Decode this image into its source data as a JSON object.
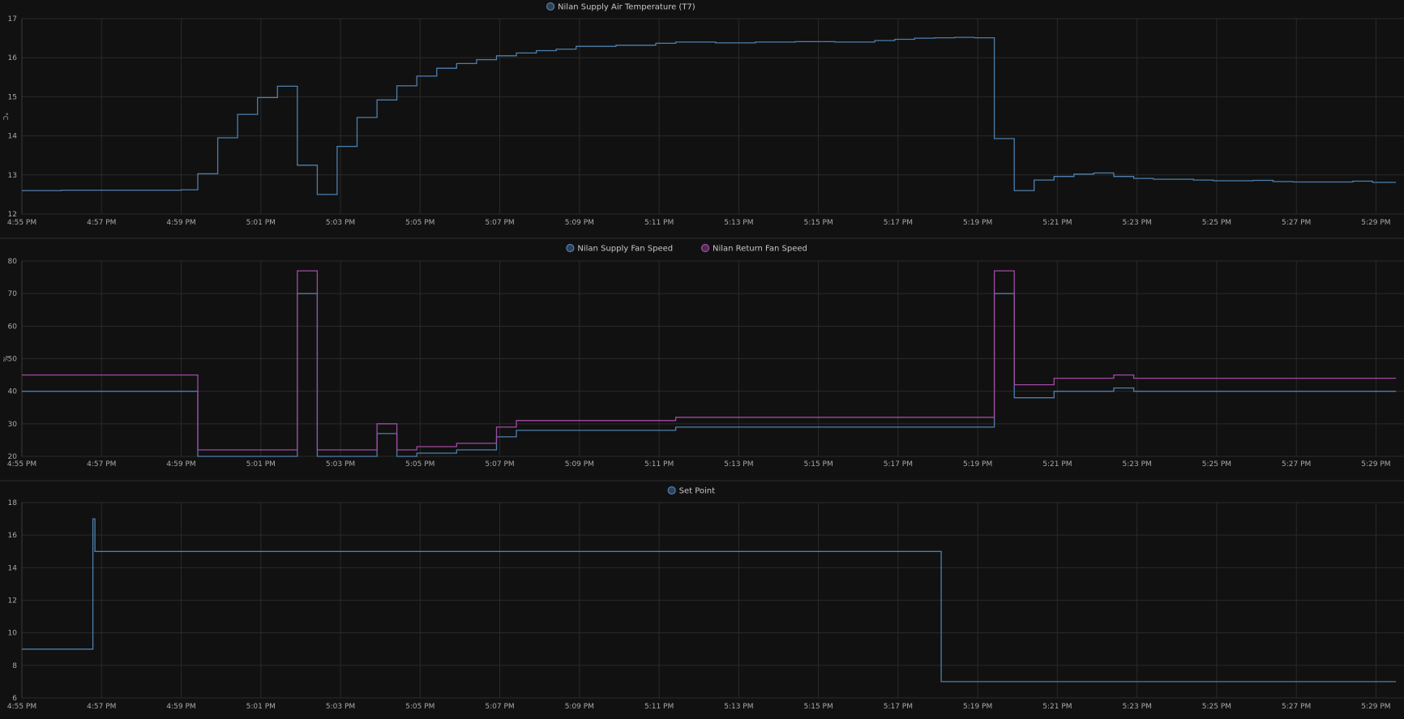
{
  "colors": {
    "background": "#111111",
    "grid": "#2a2a2a",
    "axis_text": "#a9a9a9",
    "legend_text": "#c8c8c8",
    "separator": "#2e2e2e",
    "supply_blue": "#4e7fad",
    "return_purple": "#a24aa3"
  },
  "x_ticks": [
    "4:55 PM",
    "4:57 PM",
    "4:59 PM",
    "5:01 PM",
    "5:03 PM",
    "5:05 PM",
    "5:07 PM",
    "5:09 PM",
    "5:11 PM",
    "5:13 PM",
    "5:15 PM",
    "5:17 PM",
    "5:19 PM",
    "5:21 PM",
    "5:23 PM",
    "5:25 PM",
    "5:27 PM",
    "5:29 PM"
  ],
  "chart_data": [
    {
      "type": "line",
      "step": true,
      "x_unit": "minutes",
      "x_range": [
        "4:55 PM",
        "5:29:30 PM"
      ],
      "ylabel": "°C",
      "ylim": [
        12,
        17
      ],
      "y_ticks": [
        "12",
        "13",
        "14",
        "15",
        "16",
        "17"
      ],
      "grid": true,
      "legend_position": "top-center",
      "series": [
        {
          "name": "Nilan Supply Air Temperature (T7)",
          "color": "#4e7fad",
          "points": [
            [
              "4:55 PM",
              12.6
            ],
            [
              "4:56 PM",
              12.61
            ],
            [
              "4:58:30 PM",
              12.61
            ],
            [
              "4:59 PM",
              12.62
            ],
            [
              "4:59:25 PM",
              13.03
            ],
            [
              "4:59:55 PM",
              13.95
            ],
            [
              "5:00:25 PM",
              14.55
            ],
            [
              "5:00:55 PM",
              14.98
            ],
            [
              "5:01:25 PM",
              15.27
            ],
            [
              "5:01:55 PM",
              13.25
            ],
            [
              "5:02:25 PM",
              12.5
            ],
            [
              "5:02:55 PM",
              13.73
            ],
            [
              "5:03:25 PM",
              14.47
            ],
            [
              "5:03:55 PM",
              14.92
            ],
            [
              "5:04:25 PM",
              15.28
            ],
            [
              "5:04:55 PM",
              15.53
            ],
            [
              "5:05:25 PM",
              15.73
            ],
            [
              "5:05:55 PM",
              15.85
            ],
            [
              "5:06:25 PM",
              15.95
            ],
            [
              "5:06:55 PM",
              16.05
            ],
            [
              "5:07:25 PM",
              16.12
            ],
            [
              "5:07:55 PM",
              16.18
            ],
            [
              "5:08:25 PM",
              16.22
            ],
            [
              "5:08:55 PM",
              16.29
            ],
            [
              "5:09:55 PM",
              16.32
            ],
            [
              "5:10:55 PM",
              16.37
            ],
            [
              "5:11:25 PM",
              16.4
            ],
            [
              "5:12:25 PM",
              16.38
            ],
            [
              "5:13:25 PM",
              16.4
            ],
            [
              "5:14:25 PM",
              16.41
            ],
            [
              "5:15:25 PM",
              16.4
            ],
            [
              "5:16:25 PM",
              16.44
            ],
            [
              "5:16:55 PM",
              16.47
            ],
            [
              "5:17:25 PM",
              16.5
            ],
            [
              "5:17:55 PM",
              16.51
            ],
            [
              "5:18:25 PM",
              16.52
            ],
            [
              "5:18:55 PM",
              16.51
            ],
            [
              "5:19:25 PM",
              13.93
            ],
            [
              "5:19:55 PM",
              12.6
            ],
            [
              "5:20:25 PM",
              12.87
            ],
            [
              "5:20:55 PM",
              12.96
            ],
            [
              "5:21:25 PM",
              13.02
            ],
            [
              "5:21:55 PM",
              13.05
            ],
            [
              "5:22:25 PM",
              12.96
            ],
            [
              "5:22:55 PM",
              12.91
            ],
            [
              "5:23:25 PM",
              12.89
            ],
            [
              "5:24:25 PM",
              12.87
            ],
            [
              "5:24:55 PM",
              12.85
            ],
            [
              "5:25:55 PM",
              12.86
            ],
            [
              "5:26:25 PM",
              12.83
            ],
            [
              "5:26:55 PM",
              12.82
            ],
            [
              "5:28:25 PM",
              12.84
            ],
            [
              "5:28:55 PM",
              12.81
            ],
            [
              "5:29:30 PM",
              12.81
            ]
          ]
        }
      ]
    },
    {
      "type": "line",
      "step": true,
      "x_unit": "minutes",
      "x_range": [
        "4:55 PM",
        "5:29:30 PM"
      ],
      "ylabel": "%",
      "ylim": [
        20,
        80
      ],
      "y_ticks": [
        "20",
        "30",
        "40",
        "50",
        "60",
        "70",
        "80"
      ],
      "grid": true,
      "legend_position": "top-center",
      "series": [
        {
          "name": "Nilan Supply Fan Speed",
          "color": "#4e7fad",
          "points": [
            [
              "4:55 PM",
              40
            ],
            [
              "4:59:25 PM",
              20
            ],
            [
              "5:01:55 PM",
              70
            ],
            [
              "5:02:25 PM",
              20
            ],
            [
              "5:03:55 PM",
              27
            ],
            [
              "5:04:25 PM",
              20
            ],
            [
              "5:04:55 PM",
              21
            ],
            [
              "5:05:55 PM",
              22
            ],
            [
              "5:06:55 PM",
              26
            ],
            [
              "5:07:25 PM",
              28
            ],
            [
              "5:11:25 PM",
              29
            ],
            [
              "5:19:25 PM",
              70
            ],
            [
              "5:19:55 PM",
              38
            ],
            [
              "5:20:55 PM",
              40
            ],
            [
              "5:22:25 PM",
              41
            ],
            [
              "5:22:55 PM",
              40
            ],
            [
              "5:29:30 PM",
              40
            ]
          ]
        },
        {
          "name": "Nilan Return Fan Speed",
          "color": "#a24aa3",
          "points": [
            [
              "4:55 PM",
              45
            ],
            [
              "4:59:25 PM",
              22
            ],
            [
              "5:01:55 PM",
              77
            ],
            [
              "5:02:25 PM",
              22
            ],
            [
              "5:03:55 PM",
              30
            ],
            [
              "5:04:25 PM",
              22
            ],
            [
              "5:04:55 PM",
              23
            ],
            [
              "5:05:55 PM",
              24
            ],
            [
              "5:06:55 PM",
              29
            ],
            [
              "5:07:25 PM",
              31
            ],
            [
              "5:11:25 PM",
              32
            ],
            [
              "5:19:25 PM",
              77
            ],
            [
              "5:19:55 PM",
              42
            ],
            [
              "5:20:55 PM",
              44
            ],
            [
              "5:22:25 PM",
              45
            ],
            [
              "5:22:55 PM",
              44
            ],
            [
              "5:29:30 PM",
              44
            ]
          ]
        }
      ]
    },
    {
      "type": "line",
      "step": true,
      "x_unit": "minutes",
      "x_range": [
        "4:55 PM",
        "5:29:30 PM"
      ],
      "ylabel": "",
      "ylim": [
        6,
        18
      ],
      "y_ticks": [
        "6",
        "8",
        "10",
        "12",
        "14",
        "16",
        "18"
      ],
      "grid": true,
      "legend_position": "top-center",
      "series": [
        {
          "name": "Set Point",
          "color": "#4e7fad",
          "points": [
            [
              "4:55 PM",
              9
            ],
            [
              "4:56:47 PM",
              17
            ],
            [
              "4:56:50 PM",
              15
            ],
            [
              "5:18:05 PM",
              7
            ],
            [
              "5:29:30 PM",
              7
            ]
          ]
        }
      ]
    }
  ]
}
